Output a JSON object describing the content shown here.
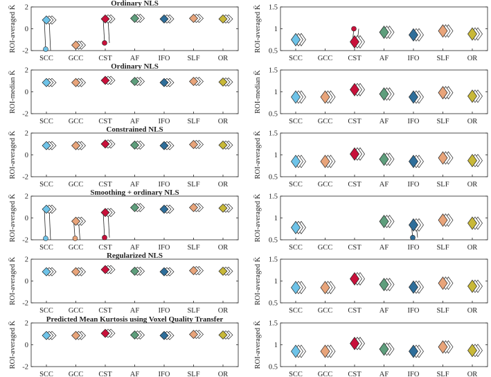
{
  "colors": {
    "SCC": "#6ec3e8",
    "GCC": "#e8a47a",
    "CST": "#c8103a",
    "AF": "#5e9e7c",
    "IFO": "#2e6e9a",
    "SLF": "#e8a47a",
    "OR": "#c8b838",
    "open_marker": "#ffffff",
    "axis": "#222222"
  },
  "chart_data": [
    {
      "type": "scatter",
      "panel": "left-1",
      "title": "Ordinary NLS",
      "xlabel": "",
      "ylabel": "ROI-averaged K̄",
      "categories": [
        "SCC",
        "GCC",
        "CST",
        "AF",
        "IFO",
        "SLF",
        "OR"
      ],
      "ylim": [
        -2,
        2
      ],
      "yticks": [
        "-2",
        "0",
        "2"
      ],
      "values": [
        0.8,
        -1.5,
        0.9,
        0.95,
        0.9,
        0.95,
        0.9
      ],
      "outliers": [
        {
          "category": "SCC",
          "value": -2
        },
        {
          "category": "CST",
          "value": -1.3
        }
      ]
    },
    {
      "type": "scatter",
      "panel": "right-1",
      "title": "",
      "xlabel": "",
      "ylabel": "ROI-averaged K̄",
      "categories": [
        "SCC",
        "GCC",
        "CST",
        "AF",
        "IFO",
        "SLF",
        "OR"
      ],
      "ylim": [
        0.5,
        1.5
      ],
      "yticks": [
        "0.5",
        "1",
        "1.5"
      ],
      "values": [
        0.75,
        null,
        0.7,
        0.92,
        0.86,
        0.95,
        0.88
      ],
      "outliers": [
        {
          "category": "CST",
          "value": 1.0
        }
      ]
    },
    {
      "type": "scatter",
      "panel": "left-2",
      "title": "Ordinary NLS",
      "xlabel": "",
      "ylabel": "ROI-median K̄",
      "categories": [
        "SCC",
        "GCC",
        "CST",
        "AF",
        "IFO",
        "SLF",
        "OR"
      ],
      "ylim": [
        -2,
        2
      ],
      "yticks": [
        "-2",
        "0",
        "2"
      ],
      "values": [
        0.85,
        0.85,
        1.05,
        0.95,
        0.85,
        0.95,
        0.9
      ]
    },
    {
      "type": "scatter",
      "panel": "right-2",
      "title": "",
      "xlabel": "",
      "ylabel": "ROI-median K̄",
      "categories": [
        "SCC",
        "GCC",
        "CST",
        "AF",
        "IFO",
        "SLF",
        "OR"
      ],
      "ylim": [
        0.5,
        1.5
      ],
      "yticks": [
        "0.5",
        "1",
        "1.5"
      ],
      "values": [
        0.88,
        0.88,
        1.05,
        0.95,
        0.88,
        0.98,
        0.9
      ]
    },
    {
      "type": "scatter",
      "panel": "left-3",
      "title": "Constrained NLS",
      "xlabel": "",
      "ylabel": "ROI-averaged K̄",
      "categories": [
        "SCC",
        "GCC",
        "CST",
        "AF",
        "IFO",
        "SLF",
        "OR"
      ],
      "ylim": [
        -2,
        2
      ],
      "yticks": [
        "-2",
        "0",
        "2"
      ],
      "values": [
        0.85,
        0.85,
        1.0,
        0.9,
        0.85,
        0.95,
        0.9
      ]
    },
    {
      "type": "scatter",
      "panel": "right-3",
      "title": "",
      "xlabel": "",
      "ylabel": "ROI-averaged K̄",
      "categories": [
        "SCC",
        "GCC",
        "CST",
        "AF",
        "IFO",
        "SLF",
        "OR"
      ],
      "ylim": [
        0.5,
        1.5
      ],
      "yticks": [
        "0.5",
        "1",
        "1.5"
      ],
      "values": [
        0.85,
        0.85,
        1.02,
        0.9,
        0.85,
        0.93,
        0.87
      ]
    },
    {
      "type": "scatter",
      "panel": "left-4",
      "title": "Smoothing + ordinary NLS",
      "xlabel": "",
      "ylabel": "ROI-averaged K̄",
      "categories": [
        "SCC",
        "GCC",
        "CST",
        "AF",
        "IFO",
        "SLF",
        "OR"
      ],
      "ylim": [
        -2,
        2
      ],
      "yticks": [
        "-2",
        "0",
        "2"
      ],
      "values": [
        0.8,
        -0.3,
        0.5,
        0.95,
        0.8,
        0.95,
        0.9
      ],
      "outliers": [
        {
          "category": "SCC",
          "value": -2
        },
        {
          "category": "GCC",
          "value": -2
        },
        {
          "category": "CST",
          "value": -1.8
        }
      ]
    },
    {
      "type": "scatter",
      "panel": "right-4",
      "title": "",
      "xlabel": "",
      "ylabel": "ROI-averaged K̄",
      "categories": [
        "SCC",
        "GCC",
        "CST",
        "AF",
        "IFO",
        "SLF",
        "OR"
      ],
      "ylim": [
        0.5,
        1.5
      ],
      "yticks": [
        "0.5",
        "1",
        "1.5"
      ],
      "values": [
        0.78,
        null,
        null,
        0.92,
        0.84,
        0.95,
        0.88
      ],
      "outliers": [
        {
          "category": "IFO",
          "value": 0.55
        }
      ]
    },
    {
      "type": "scatter",
      "panel": "left-5",
      "title": "Regularized NLS",
      "xlabel": "",
      "ylabel": "ROI-averaged K̄",
      "categories": [
        "SCC",
        "GCC",
        "CST",
        "AF",
        "IFO",
        "SLF",
        "OR"
      ],
      "ylim": [
        -2,
        2
      ],
      "yticks": [
        "-2",
        "0",
        "2"
      ],
      "values": [
        0.85,
        0.85,
        1.05,
        0.9,
        0.85,
        0.95,
        0.9
      ]
    },
    {
      "type": "scatter",
      "panel": "right-5",
      "title": "",
      "xlabel": "",
      "ylabel": "ROI-averaged K̄",
      "categories": [
        "SCC",
        "GCC",
        "CST",
        "AF",
        "IFO",
        "SLF",
        "OR"
      ],
      "ylim": [
        0.5,
        1.5
      ],
      "yticks": [
        "0.5",
        "1",
        "1.5"
      ],
      "values": [
        0.85,
        0.85,
        1.05,
        0.92,
        0.86,
        0.95,
        0.88
      ]
    },
    {
      "type": "scatter",
      "panel": "left-6",
      "title": "Predicted Mean Kurtosis using Voxel Quality Transfer",
      "xlabel": "",
      "ylabel": "ROI-averaged K̄",
      "categories": [
        "SCC",
        "GCC",
        "CST",
        "AF",
        "IFO",
        "SLF",
        "OR"
      ],
      "ylim": [
        -2,
        2
      ],
      "yticks": [
        "-2",
        "0",
        "2"
      ],
      "values": [
        0.85,
        0.85,
        1.05,
        0.9,
        0.85,
        0.95,
        0.9
      ]
    },
    {
      "type": "scatter",
      "panel": "right-6",
      "title": "",
      "xlabel": "",
      "ylabel": "ROI-averaged K̄",
      "categories": [
        "SCC",
        "GCC",
        "CST",
        "AF",
        "IFO",
        "SLF",
        "OR"
      ],
      "ylim": [
        0.5,
        1.5
      ],
      "yticks": [
        "0.5",
        "1",
        "1.5"
      ],
      "values": [
        0.85,
        0.85,
        1.03,
        0.9,
        0.85,
        0.95,
        0.87
      ]
    }
  ]
}
